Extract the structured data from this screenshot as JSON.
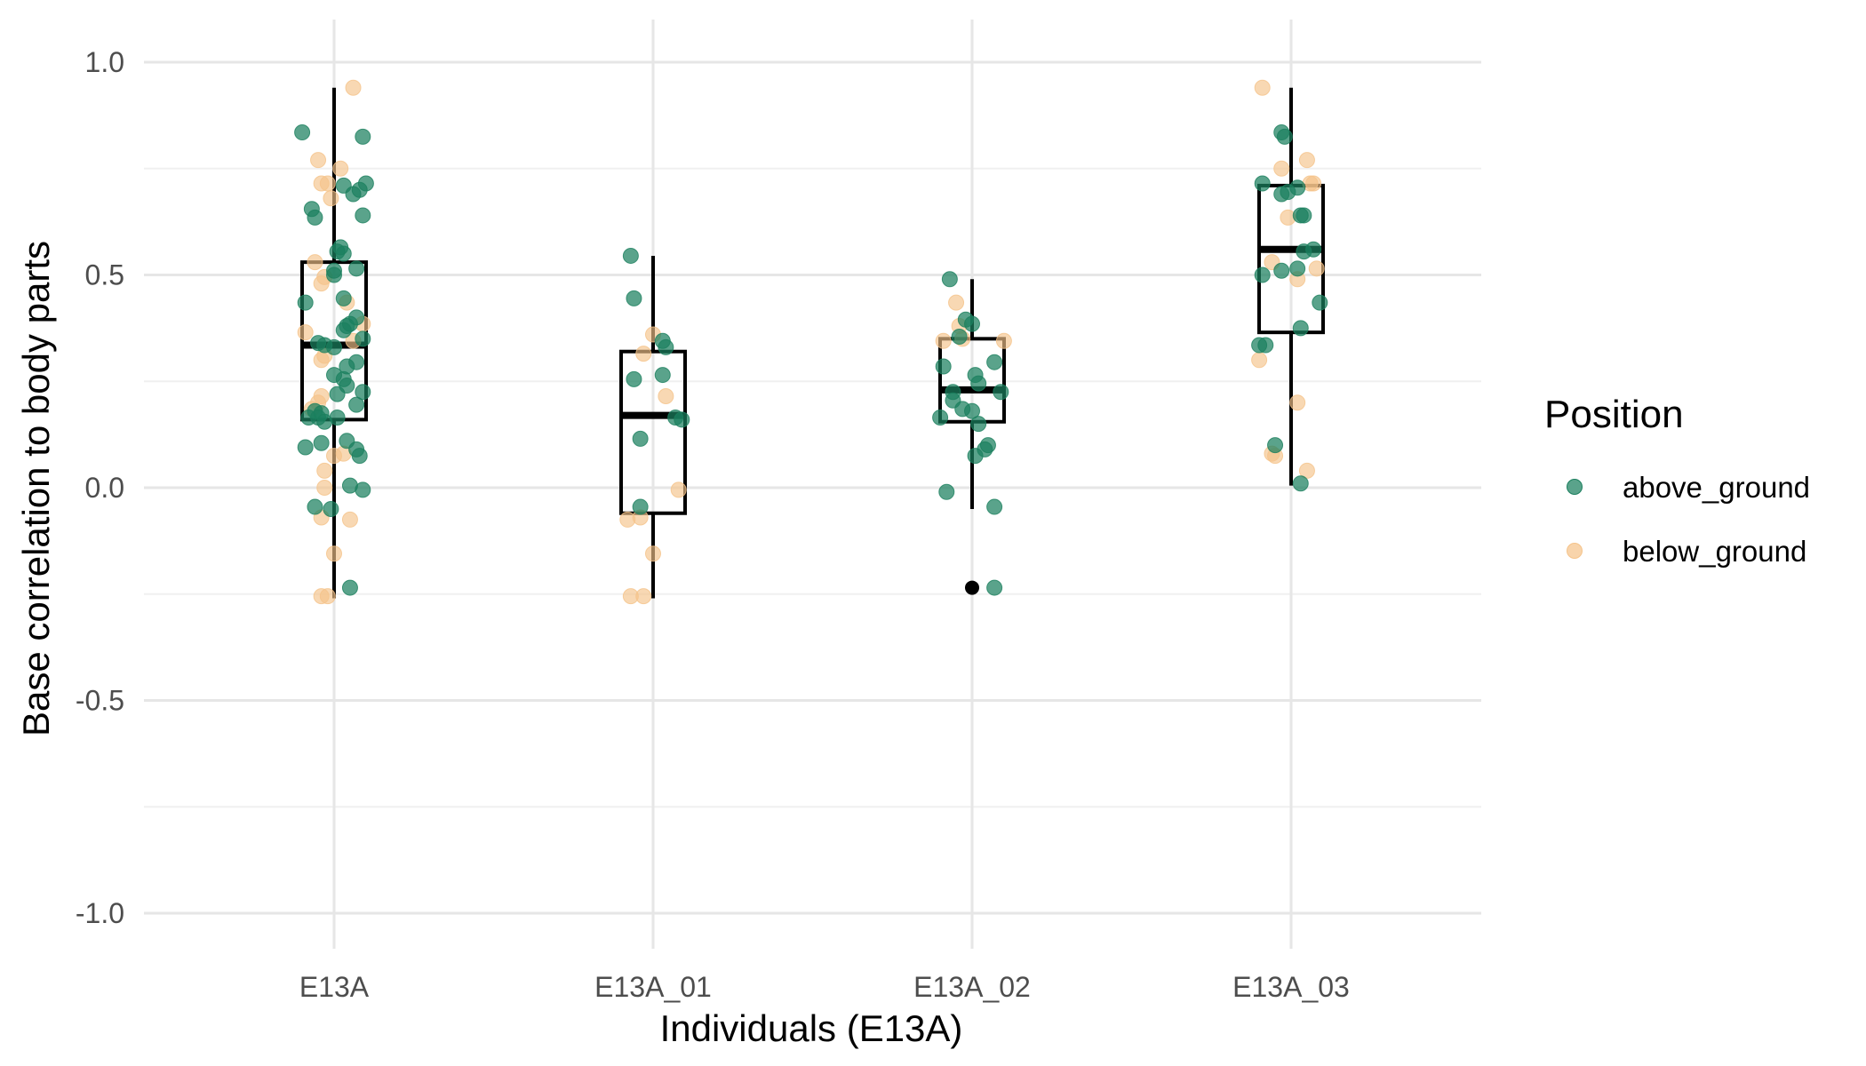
{
  "chart_data": {
    "type": "boxplot",
    "title": "",
    "xlabel": "Individuals (E13A)",
    "ylabel": "Base correlation to body parts",
    "ylim": [
      -1.0,
      1.0
    ],
    "yticks": [
      "1.0",
      "0.5",
      "0.0",
      "-0.5",
      "-1.0"
    ],
    "categories": [
      "E13A",
      "E13A_01",
      "E13A_02",
      "E13A_03"
    ],
    "grid": true,
    "legend": {
      "title": "Position",
      "placement": "right",
      "entries": [
        {
          "name": "above_ground",
          "color": "#1b7f5e"
        },
        {
          "name": "below_ground",
          "color": "#f5c38a"
        }
      ]
    },
    "boxes": [
      {
        "category": "E13A",
        "q1": 0.16,
        "median": 0.335,
        "q3": 0.53,
        "whisker_low": -0.26,
        "whisker_high": 0.94,
        "outliers": []
      },
      {
        "category": "E13A_01",
        "q1": -0.06,
        "median": 0.17,
        "q3": 0.32,
        "whisker_low": -0.26,
        "whisker_high": 0.545,
        "outliers": []
      },
      {
        "category": "E13A_02",
        "q1": 0.155,
        "median": 0.23,
        "q3": 0.35,
        "whisker_low": -0.05,
        "whisker_high": 0.49,
        "outliers": [
          -0.235
        ]
      },
      {
        "category": "E13A_03",
        "q1": 0.365,
        "median": 0.56,
        "q3": 0.71,
        "whisker_low": 0.005,
        "whisker_high": 0.94,
        "outliers": []
      }
    ],
    "points": {
      "E13A": {
        "above_ground": [
          {
            "dx": -0.1,
            "y": 0.835
          },
          {
            "dx": -0.07,
            "y": 0.655
          },
          {
            "dx": -0.06,
            "y": 0.635
          },
          {
            "dx": 0.09,
            "y": 0.825
          },
          {
            "dx": 0.1,
            "y": 0.715
          },
          {
            "dx": 0.08,
            "y": 0.7
          },
          {
            "dx": 0.06,
            "y": 0.69
          },
          {
            "dx": 0.03,
            "y": 0.71
          },
          {
            "dx": 0.09,
            "y": 0.64
          },
          {
            "dx": 0.02,
            "y": 0.565
          },
          {
            "dx": 0.01,
            "y": 0.555
          },
          {
            "dx": 0.03,
            "y": 0.55
          },
          {
            "dx": 0.07,
            "y": 0.515
          },
          {
            "dx": 0.0,
            "y": 0.51
          },
          {
            "dx": 0.0,
            "y": 0.5
          },
          {
            "dx": -0.09,
            "y": 0.435
          },
          {
            "dx": 0.03,
            "y": 0.445
          },
          {
            "dx": 0.07,
            "y": 0.4
          },
          {
            "dx": 0.05,
            "y": 0.385
          },
          {
            "dx": 0.04,
            "y": 0.38
          },
          {
            "dx": 0.03,
            "y": 0.37
          },
          {
            "dx": 0.09,
            "y": 0.35
          },
          {
            "dx": -0.05,
            "y": 0.34
          },
          {
            "dx": -0.03,
            "y": 0.335
          },
          {
            "dx": 0.0,
            "y": 0.33
          },
          {
            "dx": 0.07,
            "y": 0.295
          },
          {
            "dx": 0.04,
            "y": 0.285
          },
          {
            "dx": 0.0,
            "y": 0.265
          },
          {
            "dx": 0.03,
            "y": 0.255
          },
          {
            "dx": 0.04,
            "y": 0.24
          },
          {
            "dx": 0.09,
            "y": 0.225
          },
          {
            "dx": 0.01,
            "y": 0.22
          },
          {
            "dx": 0.07,
            "y": 0.195
          },
          {
            "dx": -0.06,
            "y": 0.18
          },
          {
            "dx": -0.04,
            "y": 0.175
          },
          {
            "dx": -0.05,
            "y": 0.165
          },
          {
            "dx": -0.08,
            "y": 0.165
          },
          {
            "dx": 0.01,
            "y": 0.165
          },
          {
            "dx": -0.03,
            "y": 0.155
          },
          {
            "dx": -0.09,
            "y": 0.095
          },
          {
            "dx": -0.04,
            "y": 0.105
          },
          {
            "dx": 0.04,
            "y": 0.11
          },
          {
            "dx": 0.07,
            "y": 0.09
          },
          {
            "dx": 0.08,
            "y": 0.075
          },
          {
            "dx": -0.06,
            "y": -0.045
          },
          {
            "dx": -0.01,
            "y": -0.05
          },
          {
            "dx": 0.05,
            "y": 0.005
          },
          {
            "dx": 0.09,
            "y": -0.005
          },
          {
            "dx": 0.05,
            "y": -0.235
          }
        ],
        "below_ground": [
          {
            "dx": 0.06,
            "y": 0.94
          },
          {
            "dx": -0.05,
            "y": 0.77
          },
          {
            "dx": 0.02,
            "y": 0.75
          },
          {
            "dx": -0.04,
            "y": 0.715
          },
          {
            "dx": -0.02,
            "y": 0.715
          },
          {
            "dx": -0.01,
            "y": 0.68
          },
          {
            "dx": -0.06,
            "y": 0.53
          },
          {
            "dx": -0.03,
            "y": 0.495
          },
          {
            "dx": -0.04,
            "y": 0.48
          },
          {
            "dx": 0.04,
            "y": 0.435
          },
          {
            "dx": 0.09,
            "y": 0.385
          },
          {
            "dx": -0.09,
            "y": 0.365
          },
          {
            "dx": 0.06,
            "y": 0.345
          },
          {
            "dx": -0.03,
            "y": 0.31
          },
          {
            "dx": -0.04,
            "y": 0.3
          },
          {
            "dx": -0.04,
            "y": 0.215
          },
          {
            "dx": -0.05,
            "y": 0.2
          },
          {
            "dx": -0.07,
            "y": 0.185
          },
          {
            "dx": 0.03,
            "y": 0.08
          },
          {
            "dx": 0.0,
            "y": 0.075
          },
          {
            "dx": -0.03,
            "y": 0.04
          },
          {
            "dx": -0.03,
            "y": 0.0
          },
          {
            "dx": -0.04,
            "y": -0.07
          },
          {
            "dx": 0.05,
            "y": -0.075
          },
          {
            "dx": 0.0,
            "y": -0.155
          },
          {
            "dx": -0.04,
            "y": -0.255
          },
          {
            "dx": -0.02,
            "y": -0.255
          }
        ]
      },
      "E13A_01": {
        "above_ground": [
          {
            "dx": -0.07,
            "y": 0.545
          },
          {
            "dx": -0.06,
            "y": 0.445
          },
          {
            "dx": 0.03,
            "y": 0.345
          },
          {
            "dx": 0.04,
            "y": 0.33
          },
          {
            "dx": -0.06,
            "y": 0.255
          },
          {
            "dx": 0.03,
            "y": 0.265
          },
          {
            "dx": 0.07,
            "y": 0.165
          },
          {
            "dx": 0.09,
            "y": 0.16
          },
          {
            "dx": -0.04,
            "y": 0.115
          },
          {
            "dx": -0.04,
            "y": -0.045
          }
        ],
        "below_ground": [
          {
            "dx": 0.0,
            "y": 0.36
          },
          {
            "dx": -0.03,
            "y": 0.315
          },
          {
            "dx": 0.04,
            "y": 0.215
          },
          {
            "dx": 0.08,
            "y": -0.005
          },
          {
            "dx": -0.08,
            "y": -0.075
          },
          {
            "dx": -0.04,
            "y": -0.07
          },
          {
            "dx": 0.0,
            "y": -0.155
          },
          {
            "dx": -0.07,
            "y": -0.255
          },
          {
            "dx": -0.03,
            "y": -0.255
          }
        ]
      },
      "E13A_02": {
        "above_ground": [
          {
            "dx": -0.07,
            "y": 0.49
          },
          {
            "dx": -0.02,
            "y": 0.395
          },
          {
            "dx": 0.0,
            "y": 0.385
          },
          {
            "dx": -0.04,
            "y": 0.355
          },
          {
            "dx": 0.07,
            "y": 0.295
          },
          {
            "dx": -0.09,
            "y": 0.285
          },
          {
            "dx": 0.01,
            "y": 0.265
          },
          {
            "dx": 0.02,
            "y": 0.245
          },
          {
            "dx": -0.06,
            "y": 0.225
          },
          {
            "dx": 0.09,
            "y": 0.225
          },
          {
            "dx": -0.06,
            "y": 0.205
          },
          {
            "dx": -0.03,
            "y": 0.185
          },
          {
            "dx": 0.0,
            "y": 0.18
          },
          {
            "dx": -0.1,
            "y": 0.165
          },
          {
            "dx": 0.02,
            "y": 0.15
          },
          {
            "dx": 0.05,
            "y": 0.1
          },
          {
            "dx": 0.04,
            "y": 0.09
          },
          {
            "dx": 0.01,
            "y": 0.075
          },
          {
            "dx": -0.08,
            "y": -0.01
          },
          {
            "dx": 0.07,
            "y": -0.045
          },
          {
            "dx": 0.07,
            "y": -0.235
          }
        ],
        "below_ground": [
          {
            "dx": -0.05,
            "y": 0.435
          },
          {
            "dx": -0.04,
            "y": 0.38
          },
          {
            "dx": 0.1,
            "y": 0.345
          },
          {
            "dx": -0.09,
            "y": 0.345
          },
          {
            "dx": -0.03,
            "y": 0.35
          }
        ]
      },
      "E13A_03": {
        "above_ground": [
          {
            "dx": -0.03,
            "y": 0.835
          },
          {
            "dx": -0.02,
            "y": 0.825
          },
          {
            "dx": -0.09,
            "y": 0.715
          },
          {
            "dx": 0.02,
            "y": 0.705
          },
          {
            "dx": -0.03,
            "y": 0.69
          },
          {
            "dx": -0.01,
            "y": 0.695
          },
          {
            "dx": 0.03,
            "y": 0.64
          },
          {
            "dx": 0.04,
            "y": 0.64
          },
          {
            "dx": 0.07,
            "y": 0.56
          },
          {
            "dx": 0.04,
            "y": 0.555
          },
          {
            "dx": -0.09,
            "y": 0.5
          },
          {
            "dx": -0.03,
            "y": 0.51
          },
          {
            "dx": 0.02,
            "y": 0.515
          },
          {
            "dx": 0.09,
            "y": 0.435
          },
          {
            "dx": 0.03,
            "y": 0.375
          },
          {
            "dx": -0.1,
            "y": 0.335
          },
          {
            "dx": -0.08,
            "y": 0.335
          },
          {
            "dx": -0.05,
            "y": 0.1
          },
          {
            "dx": 0.03,
            "y": 0.01
          }
        ],
        "below_ground": [
          {
            "dx": -0.09,
            "y": 0.94
          },
          {
            "dx": 0.05,
            "y": 0.77
          },
          {
            "dx": -0.03,
            "y": 0.75
          },
          {
            "dx": 0.07,
            "y": 0.715
          },
          {
            "dx": 0.06,
            "y": 0.715
          },
          {
            "dx": -0.01,
            "y": 0.635
          },
          {
            "dx": -0.06,
            "y": 0.53
          },
          {
            "dx": 0.02,
            "y": 0.49
          },
          {
            "dx": 0.08,
            "y": 0.515
          },
          {
            "dx": -0.1,
            "y": 0.3
          },
          {
            "dx": 0.02,
            "y": 0.2
          },
          {
            "dx": -0.06,
            "y": 0.08
          },
          {
            "dx": -0.05,
            "y": 0.075
          },
          {
            "dx": 0.05,
            "y": 0.04
          }
        ]
      }
    }
  }
}
